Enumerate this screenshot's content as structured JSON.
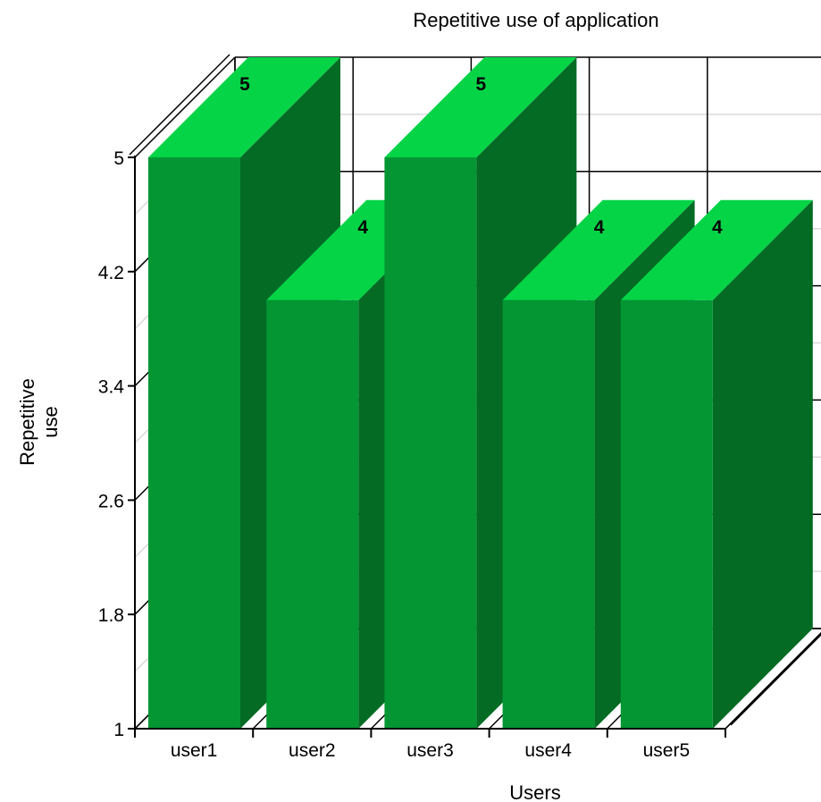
{
  "chart_data": {
    "type": "bar",
    "title": "Repetitive use of application",
    "xlabel": "Users",
    "ylabel": [
      "Repetitive",
      "use"
    ],
    "categories": [
      "user1",
      "user2",
      "user3",
      "user4",
      "user5"
    ],
    "values": [
      5,
      4,
      5,
      4,
      4
    ],
    "value_labels": [
      "5",
      "4",
      "5",
      "4",
      "4"
    ],
    "yticks": [
      "1",
      "1.8",
      "2.6",
      "3.4",
      "4.2",
      "5"
    ],
    "ylim": [
      1,
      5
    ],
    "grid": true,
    "three_d": true,
    "colors": {
      "bar_front": "#039633",
      "bar_top": "#05D447",
      "bar_side": "#036B24",
      "grid": "#000000",
      "minor_grid": "#D9D9D9"
    }
  }
}
